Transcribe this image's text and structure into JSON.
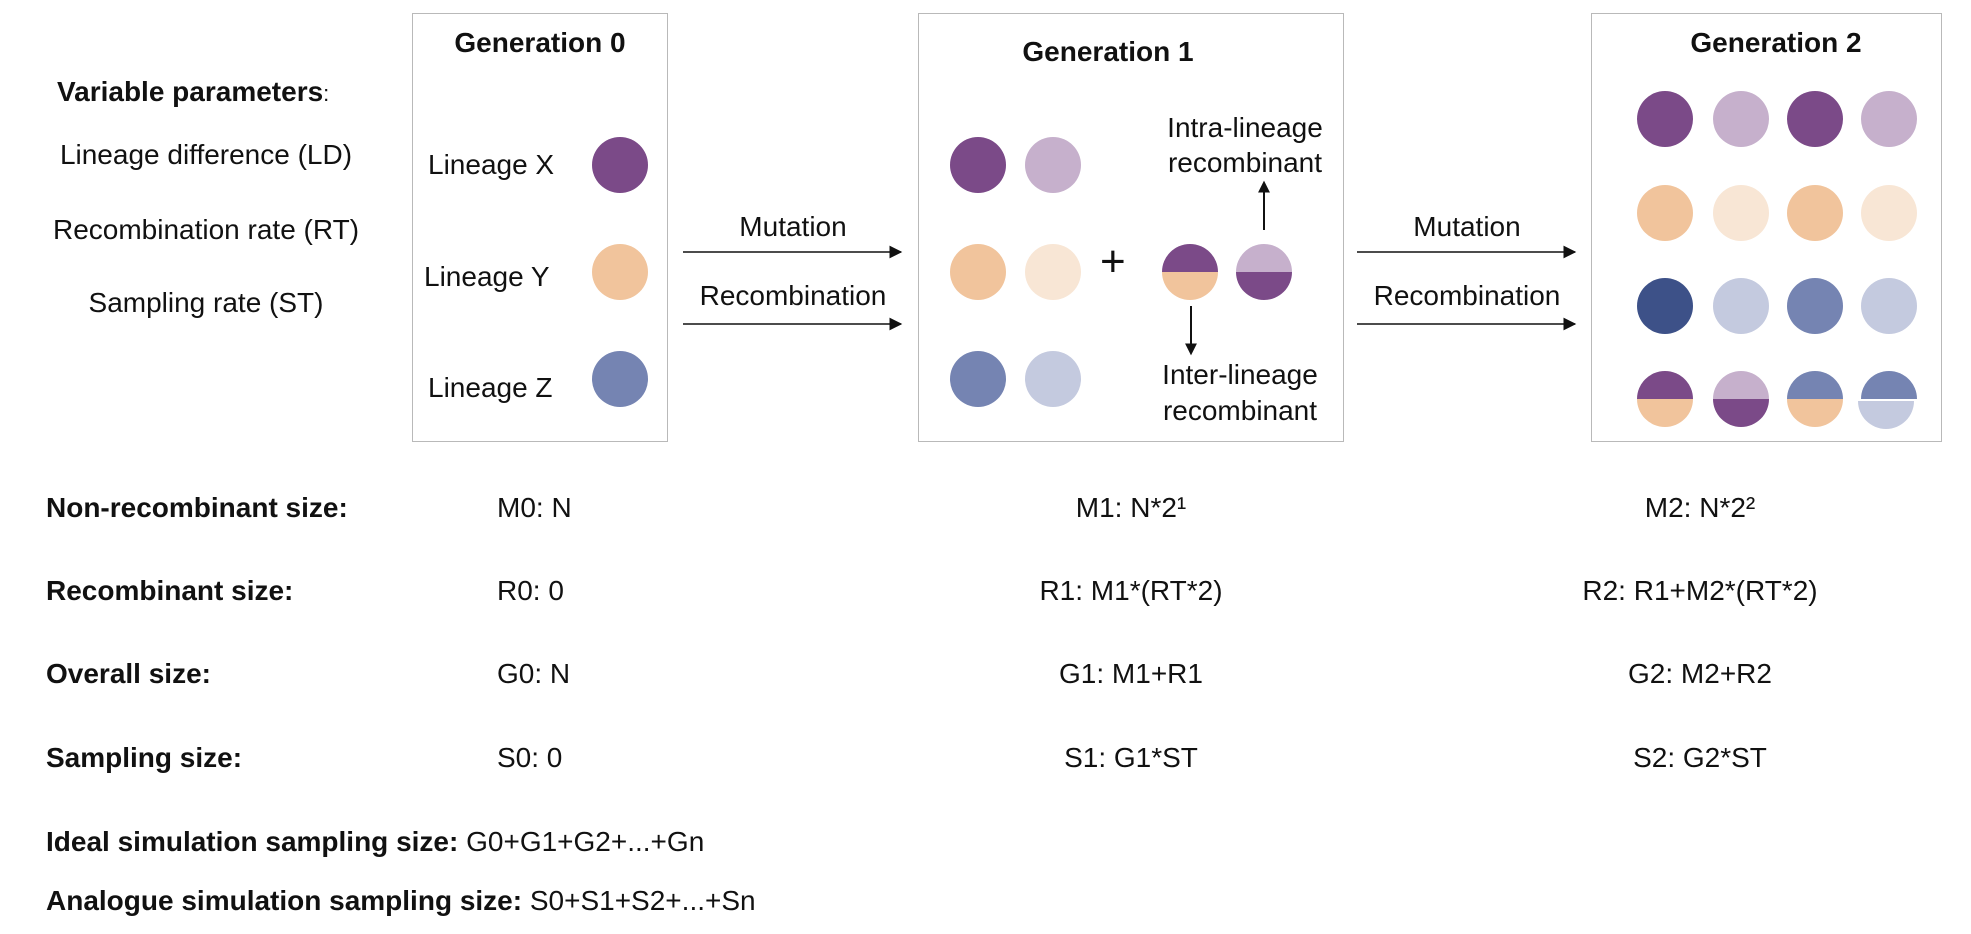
{
  "params": {
    "title": "Variable parameters",
    "title_suffix": ":",
    "items": [
      "Lineage difference (LD)",
      "Recombination rate (RT)",
      "Sampling rate (ST)"
    ]
  },
  "gen0": {
    "title": "Generation 0",
    "lineages": [
      "Lineage X",
      "Lineage Y",
      "Lineage Z"
    ]
  },
  "gen1": {
    "title": "Generation 1",
    "plus": "+",
    "intra_label": [
      "Intra-lineage",
      "recombinant"
    ],
    "inter_label": [
      "Inter-lineage",
      "recombinant"
    ]
  },
  "gen2": {
    "title": "Generation 2"
  },
  "arrows": {
    "mutation": "Mutation",
    "recombination": "Recombination"
  },
  "colors": {
    "purple": "#7b4a88",
    "purple_light": "#c6b0cc",
    "orange": "#f1c49c",
    "orange_light": "#f8e6d5",
    "blue": "#7584b2",
    "blue_light": "#c4cadf",
    "blue_dark": "#3d5188"
  },
  "table": {
    "rows": [
      {
        "label": "Non-recombinant size:",
        "g0": "M0: N",
        "g1": "M1: N*2¹",
        "g2": "M2: N*2²"
      },
      {
        "label": "Recombinant size:",
        "g0": "R0: 0",
        "g1": "R1: M1*(RT*2)",
        "g2": "R2: R1+M2*(RT*2)"
      },
      {
        "label": "Overall size:",
        "g0": "G0: N",
        "g1": "G1: M1+R1",
        "g2": "G2: M2+R2"
      },
      {
        "label": "Sampling size:",
        "g0": "S0: 0",
        "g1": "S1: G1*ST",
        "g2": "S2: G2*ST"
      }
    ]
  },
  "summary": {
    "ideal_label": "Ideal simulation sampling size:",
    "ideal_value": "G0+G1+G2+...+Gn",
    "analogue_label": "Analogue simulation sampling size:",
    "analogue_value": "S0+S1+S2+...+Sn"
  }
}
